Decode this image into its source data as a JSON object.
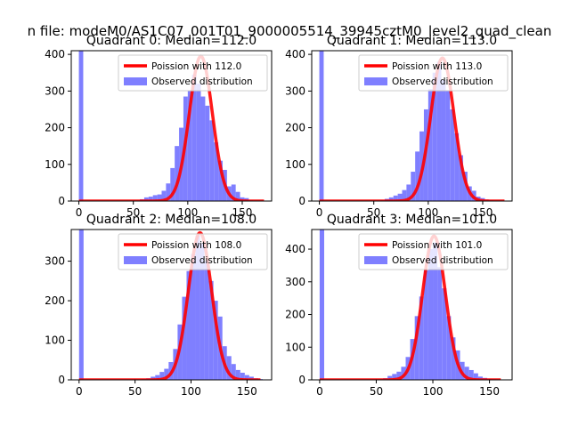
{
  "figure": {
    "suptitle": "n file: modeM0/AS1C07_001T01_9000005514_39945cztM0_level2_quad_clean"
  },
  "colors": {
    "poisson_line": "#ff0000",
    "observed_bars": "#7f7fff",
    "axes": "#000000"
  },
  "chart_data": [
    {
      "type": "bar",
      "title": "Quadrant 0: Median=112.0",
      "xlim": [
        -7,
        177
      ],
      "ylim": [
        0,
        410
      ],
      "xticks": [
        0,
        50,
        100,
        150
      ],
      "yticks": [
        0,
        100,
        200,
        300,
        400
      ],
      "grid": false,
      "legend_position": "top-right",
      "legend": [
        "Poission with 112.0",
        "Observed distribution"
      ],
      "series": [
        {
          "name": "Observed distribution",
          "type": "histogram",
          "bin_width": 4,
          "bin_starts": [
            0,
            56,
            60,
            64,
            68,
            72,
            76,
            80,
            84,
            88,
            92,
            96,
            100,
            104,
            108,
            112,
            116,
            120,
            124,
            128,
            132,
            136,
            140,
            144,
            148,
            152,
            156,
            160
          ],
          "counts": [
            410,
            5,
            10,
            12,
            16,
            18,
            28,
            48,
            90,
            150,
            200,
            285,
            300,
            345,
            320,
            285,
            260,
            220,
            160,
            110,
            85,
            40,
            45,
            25,
            10,
            8,
            2,
            1
          ]
        },
        {
          "name": "Poission with 112.0",
          "type": "line",
          "mean": 112.0,
          "peak": 395,
          "x_range": [
            0,
            170
          ]
        }
      ]
    },
    {
      "type": "bar",
      "title": "Quadrant 1: Median=113.0",
      "xlim": [
        -7,
        177
      ],
      "ylim": [
        0,
        410
      ],
      "xticks": [
        0,
        50,
        100,
        150
      ],
      "yticks": [
        0,
        100,
        200,
        300,
        400
      ],
      "grid": false,
      "legend_position": "top-right",
      "legend": [
        "Poission with 113.0",
        "Observed distribution"
      ],
      "series": [
        {
          "name": "Observed distribution",
          "type": "histogram",
          "bin_width": 4,
          "bin_starts": [
            0,
            56,
            60,
            64,
            68,
            72,
            76,
            80,
            84,
            88,
            92,
            96,
            100,
            104,
            108,
            112,
            116,
            120,
            124,
            128,
            132,
            136,
            140,
            144,
            148,
            152,
            156,
            160
          ],
          "counts": [
            410,
            2,
            6,
            10,
            15,
            20,
            30,
            45,
            80,
            135,
            190,
            250,
            305,
            350,
            380,
            330,
            300,
            250,
            185,
            125,
            80,
            40,
            28,
            12,
            8,
            4,
            2,
            1
          ]
        },
        {
          "name": "Poission with 113.0",
          "type": "line",
          "mean": 113.0,
          "peak": 390,
          "x_range": [
            0,
            170
          ]
        }
      ]
    },
    {
      "type": "bar",
      "title": "Quadrant 2: Median=108.0",
      "xlim": [
        -7,
        172
      ],
      "ylim": [
        0,
        380
      ],
      "xticks": [
        0,
        50,
        100,
        150
      ],
      "yticks": [
        0,
        100,
        200,
        300
      ],
      "grid": false,
      "legend_position": "top-right",
      "legend": [
        "Poission with 108.0",
        "Observed distribution"
      ],
      "series": [
        {
          "name": "Observed distribution",
          "type": "histogram",
          "bin_width": 4,
          "bin_starts": [
            0,
            56,
            60,
            64,
            68,
            72,
            76,
            80,
            84,
            88,
            92,
            96,
            100,
            104,
            108,
            112,
            116,
            120,
            124,
            128,
            132,
            136,
            140,
            144,
            148,
            152,
            156,
            160
          ],
          "counts": [
            380,
            2,
            4,
            8,
            12,
            20,
            28,
            45,
            78,
            140,
            210,
            275,
            318,
            365,
            345,
            300,
            250,
            200,
            160,
            85,
            60,
            40,
            25,
            18,
            12,
            8,
            4,
            2
          ]
        },
        {
          "name": "Poission with 108.0",
          "type": "line",
          "mean": 108.0,
          "peak": 372,
          "x_range": [
            0,
            162
          ]
        }
      ]
    },
    {
      "type": "bar",
      "title": "Quadrant 3: Median=101.0",
      "xlim": [
        -7,
        170
      ],
      "ylim": [
        0,
        460
      ],
      "xticks": [
        0,
        50,
        100,
        150
      ],
      "yticks": [
        0,
        100,
        200,
        300,
        400
      ],
      "grid": false,
      "legend_position": "top-right",
      "legend": [
        "Poission with 101.0",
        "Observed distribution"
      ],
      "series": [
        {
          "name": "Observed distribution",
          "type": "histogram",
          "bin_width": 4,
          "bin_starts": [
            0,
            52,
            56,
            60,
            64,
            68,
            72,
            76,
            80,
            84,
            88,
            92,
            96,
            100,
            104,
            108,
            112,
            116,
            120,
            124,
            128,
            132,
            136,
            140,
            144,
            148,
            152,
            156
          ],
          "counts": [
            460,
            2,
            5,
            12,
            18,
            25,
            40,
            70,
            125,
            195,
            255,
            335,
            400,
            420,
            345,
            280,
            195,
            130,
            90,
            55,
            40,
            30,
            20,
            10,
            6,
            3,
            2,
            1
          ]
        },
        {
          "name": "Poission with 101.0",
          "type": "line",
          "mean": 101.0,
          "peak": 440,
          "x_range": [
            0,
            160
          ]
        }
      ]
    }
  ]
}
